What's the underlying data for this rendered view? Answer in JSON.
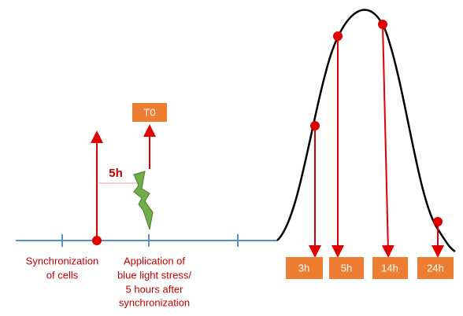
{
  "t0_label": "T0",
  "delay_label": "5h",
  "start_label": [
    "Synchronization",
    "of cells"
  ],
  "stress_label": [
    "Application of",
    "blue light stress/",
    "5 hours after",
    "synchronization"
  ],
  "samples": [
    "3h",
    "5h",
    "14h",
    "24h"
  ]
}
